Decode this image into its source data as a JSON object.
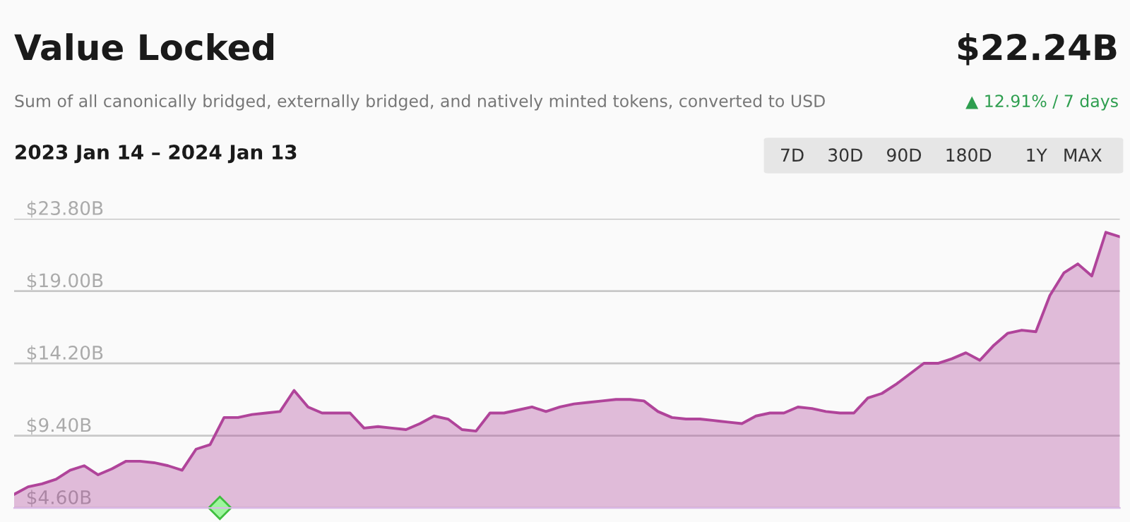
{
  "chart_data": {
    "type": "area",
    "title": "Value Locked",
    "subtitle": "Sum of all canonically bridged, externally bridged, and natively minted tokens, converted to USD",
    "annotations": [
      "$22.24B",
      "▲ 12.91% / 7 days",
      "2023 Jan 14 – 2024 Jan 13",
      "7D",
      "30D",
      "90D",
      "180D",
      "1Y",
      "MAX"
    ],
    "categories": [
      null,
      null,
      null,
      null,
      null,
      null,
      null,
      null,
      null,
      null,
      null,
      null,
      null,
      null,
      null,
      null,
      null,
      null,
      null,
      null,
      null,
      null,
      null,
      null,
      null,
      null,
      null,
      null,
      null,
      null,
      null,
      null,
      null,
      null,
      null,
      null,
      null,
      null,
      null,
      null,
      null,
      null,
      null,
      null,
      null,
      null,
      null,
      null,
      null,
      null,
      null,
      null,
      null,
      null,
      null,
      null,
      null,
      null,
      null,
      null,
      null,
      null,
      null,
      null,
      null,
      null,
      null,
      null,
      null,
      null,
      null,
      null,
      null,
      null,
      null,
      null,
      null,
      null,
      null,
      null
    ],
    "series": [
      {
        "color": "#b0449a",
        "values": [
          5.5,
          6.0,
          6.2,
          6.5,
          7.1,
          7.4,
          6.8,
          7.2,
          7.7,
          7.7,
          7.6,
          7.4,
          7.1,
          8.5,
          8.8,
          10.6,
          10.6,
          10.8,
          10.9,
          11.0,
          12.4,
          11.3,
          10.9,
          10.9,
          10.9,
          9.9,
          10.0,
          9.9,
          9.8,
          10.2,
          10.7,
          10.5,
          9.8,
          9.7,
          10.9,
          10.9,
          11.1,
          11.3,
          11.0,
          11.3,
          11.5,
          11.6,
          11.7,
          11.8,
          11.8,
          11.7,
          11.0,
          10.6,
          10.5,
          10.5,
          10.4,
          10.3,
          10.2,
          10.7,
          10.9,
          10.9,
          11.3,
          11.2,
          11.0,
          10.9,
          10.9,
          11.9,
          12.2,
          12.8,
          13.5,
          14.2,
          14.2,
          14.5,
          14.9,
          14.4,
          15.4,
          16.2,
          16.4,
          16.3,
          18.7,
          20.2,
          20.8,
          20.0,
          22.9,
          22.6
        ]
      }
    ],
    "ylim": [
      4.6,
      23.8
    ],
    "yticks": [
      {
        "value": 4.6,
        "label": "$4.60B"
      },
      {
        "value": 9.4,
        "label": "$9.40B"
      },
      {
        "value": 14.2,
        "label": "$14.20B"
      },
      {
        "value": 19.0,
        "label": "$19.00B"
      },
      {
        "value": 23.8,
        "label": "$23.80B"
      }
    ],
    "grid": "y",
    "tick_labels": "y",
    "legend": false
  }
}
